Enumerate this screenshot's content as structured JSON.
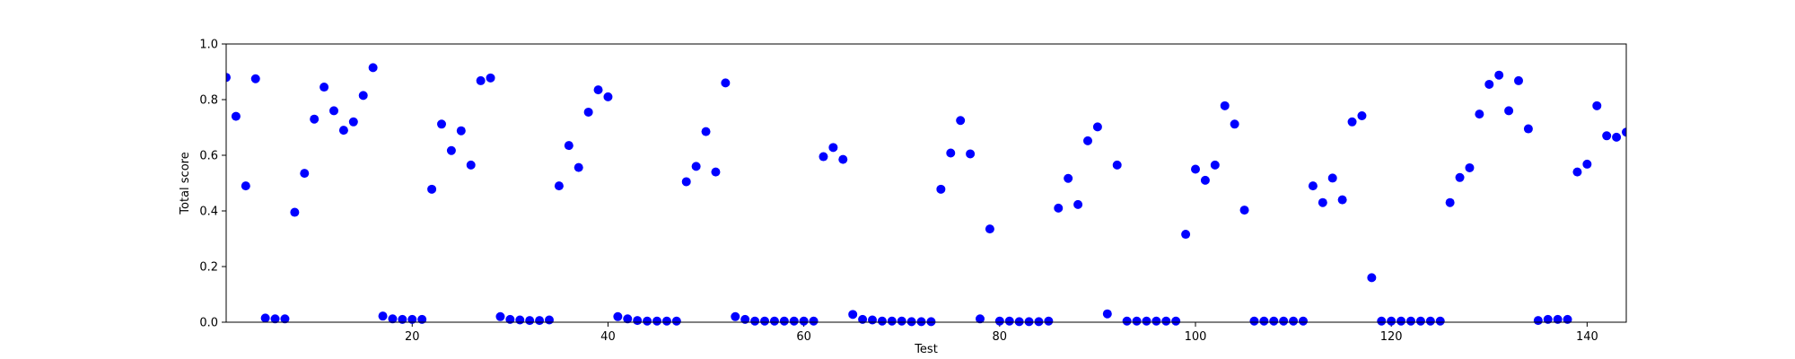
{
  "chart_data": {
    "type": "scatter",
    "title": "",
    "xlabel": "Test",
    "ylabel": "Total score",
    "xlim": [
      1,
      144
    ],
    "ylim": [
      0.0,
      1.0
    ],
    "xticks": [
      20,
      40,
      60,
      80,
      100,
      120,
      140
    ],
    "yticks": [
      0.0,
      0.2,
      0.4,
      0.6,
      0.8,
      1.0
    ],
    "grid": false,
    "color": "#0000ff",
    "series": [
      {
        "x": [
          1,
          2,
          3,
          4,
          5,
          6,
          7,
          8,
          9,
          10,
          11,
          12,
          13,
          14,
          15,
          16,
          17,
          18,
          19,
          20,
          21,
          22,
          23,
          24,
          25,
          26,
          27,
          28,
          29,
          30,
          31,
          32,
          33,
          34,
          35,
          36,
          37,
          38,
          39,
          40,
          41,
          42,
          43,
          44,
          45,
          46,
          47,
          48,
          49,
          50,
          51,
          52,
          53,
          54,
          55,
          56,
          57,
          58,
          59,
          60,
          61,
          62,
          63,
          64,
          65,
          66,
          67,
          68,
          69,
          70,
          71,
          72,
          73,
          74,
          75,
          76,
          77,
          78,
          79,
          80,
          81,
          82,
          83,
          84,
          85,
          86,
          87,
          88,
          89,
          90,
          91,
          92,
          93,
          94,
          95,
          96,
          97,
          98,
          99,
          100,
          101,
          102,
          103,
          104,
          105,
          106,
          107,
          108,
          109,
          110,
          111,
          112,
          113,
          114,
          115,
          116,
          117,
          118,
          119,
          120,
          121,
          122,
          123,
          124,
          125,
          126,
          127,
          128,
          129,
          130,
          131,
          132,
          133,
          134,
          135,
          136,
          137,
          138,
          139,
          140,
          141,
          142,
          143,
          144
        ],
        "y": [
          0.88,
          0.74,
          0.49,
          0.875,
          0.015,
          0.012,
          0.012,
          0.395,
          0.535,
          0.73,
          0.845,
          0.76,
          0.69,
          0.72,
          0.815,
          0.915,
          0.022,
          0.012,
          0.01,
          0.01,
          0.01,
          0.478,
          0.712,
          0.617,
          0.688,
          0.565,
          0.868,
          0.878,
          0.02,
          0.01,
          0.008,
          0.006,
          0.006,
          0.008,
          0.49,
          0.635,
          0.556,
          0.755,
          0.835,
          0.81,
          0.02,
          0.012,
          0.006,
          0.004,
          0.004,
          0.004,
          0.004,
          0.505,
          0.56,
          0.685,
          0.54,
          0.86,
          0.02,
          0.01,
          0.004,
          0.004,
          0.004,
          0.004,
          0.004,
          0.004,
          0.004,
          0.595,
          0.628,
          0.585,
          0.028,
          0.01,
          0.008,
          0.004,
          0.004,
          0.004,
          0.002,
          0.002,
          0.002,
          0.478,
          0.608,
          0.725,
          0.605,
          0.012,
          0.335,
          0.004,
          0.004,
          0.002,
          0.002,
          0.002,
          0.004,
          0.41,
          0.517,
          0.423,
          0.652,
          0.702,
          0.03,
          0.565,
          0.004,
          0.004,
          0.004,
          0.004,
          0.004,
          0.004,
          0.316,
          0.55,
          0.51,
          0.565,
          0.778,
          0.712,
          0.403,
          0.004,
          0.004,
          0.004,
          0.004,
          0.004,
          0.004,
          0.49,
          0.43,
          0.518,
          0.44,
          0.72,
          0.742,
          0.16,
          0.004,
          0.004,
          0.004,
          0.004,
          0.004,
          0.004,
          0.004,
          0.43,
          0.52,
          0.555,
          0.748,
          0.855,
          0.888,
          0.76,
          0.868,
          0.695,
          0.006,
          0.01,
          0.01,
          0.01,
          0.54,
          0.568,
          0.778,
          0.67,
          0.665,
          0.683
        ]
      }
    ]
  }
}
